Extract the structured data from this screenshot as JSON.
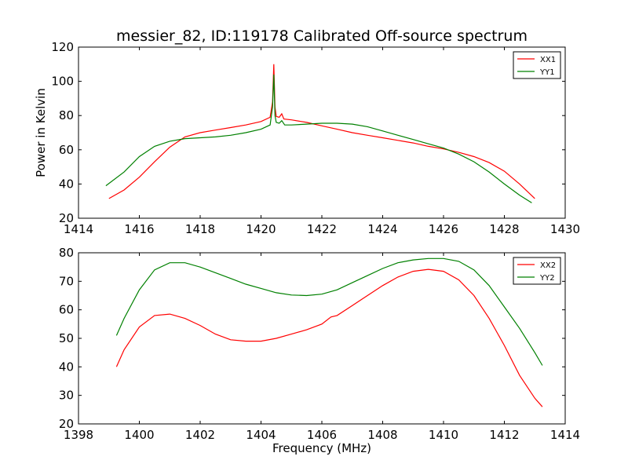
{
  "figure": {
    "title": "messier_82, ID:119178 Calibrated Off-source spectrum"
  },
  "chart_data": [
    {
      "type": "line",
      "xlabel": "",
      "ylabel": "Power in Kelvin",
      "xlim": [
        1414,
        1430
      ],
      "ylim": [
        20,
        120
      ],
      "xticks": [
        "1414",
        "1416",
        "1418",
        "1420",
        "1422",
        "1424",
        "1426",
        "1428",
        "1430"
      ],
      "yticks": [
        "20",
        "40",
        "60",
        "80",
        "100",
        "120"
      ],
      "grid": false,
      "legend_position": "top-right",
      "series": [
        {
          "name": "XX1",
          "color": "#ff0000",
          "points": [
            [
              1415.0,
              31.5
            ],
            [
              1415.5,
              36.5
            ],
            [
              1416.0,
              44.0
            ],
            [
              1416.5,
              53.0
            ],
            [
              1417.0,
              61.5
            ],
            [
              1417.5,
              67.5
            ],
            [
              1418.0,
              70.0
            ],
            [
              1418.5,
              71.5
            ],
            [
              1419.0,
              73.0
            ],
            [
              1419.5,
              74.5
            ],
            [
              1420.0,
              76.5
            ],
            [
              1420.3,
              79.0
            ],
            [
              1420.38,
              88.0
            ],
            [
              1420.42,
              110.0
            ],
            [
              1420.46,
              85.0
            ],
            [
              1420.5,
              79.5
            ],
            [
              1420.6,
              79.0
            ],
            [
              1420.68,
              81.0
            ],
            [
              1420.75,
              78.0
            ],
            [
              1421.0,
              77.5
            ],
            [
              1421.5,
              76.0
            ],
            [
              1422.0,
              74.0
            ],
            [
              1422.5,
              72.0
            ],
            [
              1423.0,
              70.0
            ],
            [
              1423.5,
              68.5
            ],
            [
              1424.0,
              67.0
            ],
            [
              1424.5,
              65.5
            ],
            [
              1425.0,
              64.0
            ],
            [
              1425.5,
              62.0
            ],
            [
              1426.0,
              60.5
            ],
            [
              1426.5,
              58.5
            ],
            [
              1427.0,
              56.0
            ],
            [
              1427.5,
              52.5
            ],
            [
              1428.0,
              47.5
            ],
            [
              1428.5,
              40.0
            ],
            [
              1429.0,
              31.5
            ]
          ]
        },
        {
          "name": "YY1",
          "color": "#008000",
          "points": [
            [
              1414.9,
              39.0
            ],
            [
              1415.5,
              47.0
            ],
            [
              1416.0,
              56.0
            ],
            [
              1416.5,
              62.0
            ],
            [
              1417.0,
              65.0
            ],
            [
              1417.5,
              66.5
            ],
            [
              1418.0,
              67.0
            ],
            [
              1418.5,
              67.5
            ],
            [
              1419.0,
              68.5
            ],
            [
              1419.5,
              70.0
            ],
            [
              1420.0,
              72.0
            ],
            [
              1420.3,
              74.5
            ],
            [
              1420.38,
              85.0
            ],
            [
              1420.42,
              104.0
            ],
            [
              1420.46,
              80.0
            ],
            [
              1420.5,
              76.0
            ],
            [
              1420.6,
              75.5
            ],
            [
              1420.68,
              77.0
            ],
            [
              1420.78,
              74.5
            ],
            [
              1421.0,
              74.5
            ],
            [
              1421.5,
              75.0
            ],
            [
              1422.0,
              75.5
            ],
            [
              1422.5,
              75.5
            ],
            [
              1423.0,
              75.0
            ],
            [
              1423.5,
              73.5
            ],
            [
              1424.0,
              71.0
            ],
            [
              1424.5,
              68.5
            ],
            [
              1425.0,
              66.0
            ],
            [
              1425.5,
              63.5
            ],
            [
              1426.0,
              61.0
            ],
            [
              1426.5,
              57.5
            ],
            [
              1427.0,
              53.0
            ],
            [
              1427.5,
              47.0
            ],
            [
              1428.0,
              40.0
            ],
            [
              1428.5,
              33.5
            ],
            [
              1428.9,
              29.0
            ]
          ]
        }
      ]
    },
    {
      "type": "line",
      "xlabel": "Frequency (MHz)",
      "ylabel": "",
      "xlim": [
        1398,
        1414
      ],
      "ylim": [
        20,
        80
      ],
      "xticks": [
        "1398",
        "1400",
        "1402",
        "1404",
        "1406",
        "1408",
        "1410",
        "1412",
        "1414"
      ],
      "yticks": [
        "20",
        "30",
        "40",
        "50",
        "60",
        "70",
        "80"
      ],
      "grid": false,
      "legend_position": "top-right",
      "series": [
        {
          "name": "XX2",
          "color": "#ff0000",
          "points": [
            [
              1399.25,
              40.0
            ],
            [
              1399.5,
              46.0
            ],
            [
              1400.0,
              54.0
            ],
            [
              1400.5,
              58.0
            ],
            [
              1401.0,
              58.5
            ],
            [
              1401.5,
              57.0
            ],
            [
              1402.0,
              54.5
            ],
            [
              1402.5,
              51.5
            ],
            [
              1403.0,
              49.5
            ],
            [
              1403.5,
              49.0
            ],
            [
              1404.0,
              49.0
            ],
            [
              1404.5,
              50.0
            ],
            [
              1405.0,
              51.5
            ],
            [
              1405.5,
              53.0
            ],
            [
              1406.0,
              55.0
            ],
            [
              1406.3,
              57.5
            ],
            [
              1406.5,
              58.0
            ],
            [
              1407.0,
              61.5
            ],
            [
              1407.5,
              65.0
            ],
            [
              1408.0,
              68.5
            ],
            [
              1408.5,
              71.5
            ],
            [
              1409.0,
              73.5
            ],
            [
              1409.5,
              74.2
            ],
            [
              1410.0,
              73.5
            ],
            [
              1410.5,
              70.5
            ],
            [
              1411.0,
              65.0
            ],
            [
              1411.5,
              57.0
            ],
            [
              1412.0,
              47.5
            ],
            [
              1412.5,
              37.0
            ],
            [
              1413.0,
              29.0
            ],
            [
              1413.25,
              26.0
            ]
          ]
        },
        {
          "name": "YY2",
          "color": "#008000",
          "points": [
            [
              1399.25,
              51.0
            ],
            [
              1399.5,
              57.0
            ],
            [
              1400.0,
              67.0
            ],
            [
              1400.5,
              74.0
            ],
            [
              1401.0,
              76.5
            ],
            [
              1401.5,
              76.5
            ],
            [
              1402.0,
              75.0
            ],
            [
              1402.5,
              73.0
            ],
            [
              1403.0,
              71.0
            ],
            [
              1403.5,
              69.0
            ],
            [
              1404.0,
              67.5
            ],
            [
              1404.5,
              66.0
            ],
            [
              1405.0,
              65.2
            ],
            [
              1405.5,
              65.0
            ],
            [
              1406.0,
              65.5
            ],
            [
              1406.5,
              67.0
            ],
            [
              1407.0,
              69.5
            ],
            [
              1407.5,
              72.0
            ],
            [
              1408.0,
              74.5
            ],
            [
              1408.5,
              76.5
            ],
            [
              1409.0,
              77.5
            ],
            [
              1409.5,
              78.0
            ],
            [
              1410.0,
              78.0
            ],
            [
              1410.5,
              77.0
            ],
            [
              1411.0,
              74.0
            ],
            [
              1411.5,
              68.5
            ],
            [
              1412.0,
              61.0
            ],
            [
              1412.5,
              53.5
            ],
            [
              1413.0,
              45.0
            ],
            [
              1413.25,
              40.5
            ]
          ]
        }
      ]
    }
  ]
}
